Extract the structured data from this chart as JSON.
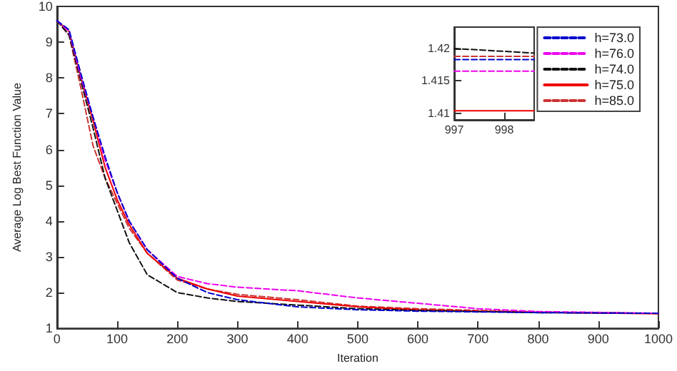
{
  "chart_data": [
    {
      "type": "line",
      "xlabel": "Iteration",
      "ylabel": "Average Log Best Function Value",
      "xlim": [
        0,
        1000
      ],
      "xticks": [
        0,
        100,
        200,
        300,
        400,
        500,
        600,
        700,
        800,
        900,
        1000
      ],
      "ylim": [
        1,
        10
      ],
      "yticks": [
        1,
        2,
        3,
        4,
        5,
        6,
        7,
        8,
        9,
        10
      ],
      "grid": false,
      "legend": "top right",
      "marker": "none",
      "x": [
        0,
        20,
        40,
        60,
        80,
        100,
        120,
        150,
        200,
        250,
        300,
        400,
        500,
        600,
        700,
        800,
        1000
      ],
      "series": [
        {
          "name": "h=73.0",
          "color": "#0000cc",
          "line_style": "dashed",
          "values": [
            9.6,
            9.35,
            8.1,
            6.9,
            5.8,
            4.8,
            4.0,
            3.2,
            2.4,
            2.0,
            1.8,
            1.6,
            1.52,
            1.48,
            1.46,
            1.44,
            1.42
          ]
        },
        {
          "name": "h=76.0",
          "color": "#ee00ee",
          "line_style": "dashed",
          "values": [
            9.6,
            9.3,
            8.0,
            6.9,
            5.7,
            4.8,
            4.0,
            3.2,
            2.45,
            2.25,
            2.15,
            2.05,
            1.85,
            1.7,
            1.55,
            1.47,
            1.42
          ]
        },
        {
          "name": "h=74.0",
          "color": "#111111",
          "line_style": "dashed",
          "values": [
            9.6,
            9.2,
            7.9,
            6.6,
            5.2,
            4.3,
            3.4,
            2.5,
            2.0,
            1.85,
            1.75,
            1.65,
            1.55,
            1.5,
            1.47,
            1.44,
            1.42
          ]
        },
        {
          "name": "h=75.0",
          "color": "#ee0000",
          "line_style": "solid",
          "values": [
            9.6,
            9.3,
            8.0,
            6.8,
            5.5,
            4.6,
            3.9,
            3.1,
            2.4,
            2.1,
            1.9,
            1.75,
            1.6,
            1.52,
            1.48,
            1.45,
            1.41
          ]
        },
        {
          "name": "h=85.0",
          "color": "#cc3333",
          "line_style": "dashed",
          "values": [
            9.6,
            9.2,
            7.7,
            6.1,
            5.2,
            4.5,
            3.8,
            3.1,
            2.35,
            2.1,
            1.95,
            1.8,
            1.62,
            1.55,
            1.5,
            1.45,
            1.42
          ]
        }
      ]
    },
    {
      "type": "line",
      "xlim": [
        997,
        998.6
      ],
      "xticks": [
        997,
        998
      ],
      "ylim": [
        1.409,
        1.4233
      ],
      "yticks": [
        1.41,
        1.415,
        1.42
      ],
      "grid": false,
      "legend": false,
      "marker": "none",
      "x": [
        997,
        998.6
      ],
      "series": [
        {
          "color": "#0000cc",
          "line_style": "dashed",
          "values": [
            1.4183,
            1.4183
          ]
        },
        {
          "color": "#ee00ee",
          "line_style": "dashed",
          "values": [
            1.4165,
            1.4165
          ]
        },
        {
          "color": "#111111",
          "line_style": "dashed",
          "values": [
            1.42,
            1.4193
          ]
        },
        {
          "color": "#ee0000",
          "line_style": "solid",
          "values": [
            1.4104,
            1.4104
          ]
        },
        {
          "color": "#cc3333",
          "line_style": "dashed",
          "values": [
            1.4188,
            1.4188
          ]
        }
      ]
    }
  ]
}
